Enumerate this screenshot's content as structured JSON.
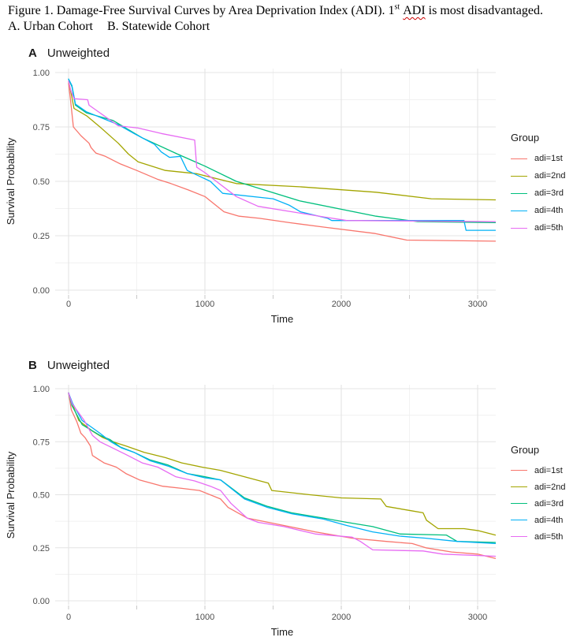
{
  "figure_title": {
    "prefix": "Figure 1. Damage-Free Survival Curves by Area Deprivation Index (ADI). 1",
    "superscript": "st",
    "misspelled_word": "ADI",
    "suffix": " is most disadvantaged.",
    "line2_a": "A. Urban Cohort",
    "line2_b": "B. Statewide Cohort"
  },
  "colors": {
    "grid_major": "#e4e4e4",
    "grid_minor": "#f1f1f1",
    "tick": "#c9c9c9",
    "axis_text": "#4d4d4d",
    "axis_title": "#1a1a1a"
  },
  "chart_data": [
    {
      "type": "line",
      "panel_label": "A",
      "title": "Unweighted",
      "xlabel": "Time",
      "ylabel": "Survival Probability",
      "x_ticks": [
        0,
        1000,
        2000,
        3000
      ],
      "x_tick_labels": [
        "0",
        "1000",
        "2000",
        "3000"
      ],
      "x_minor_ticks": [
        500,
        1500,
        2500
      ],
      "y_ticks": [
        0,
        0.25,
        0.5,
        0.75,
        1
      ],
      "y_tick_labels": [
        "0.00",
        "0.25",
        "0.50",
        "0.75",
        "1.00"
      ],
      "y_minor_ticks": [
        0.125,
        0.375,
        0.625,
        0.875
      ],
      "xlim": [
        0,
        3130
      ],
      "ylim": [
        0,
        1
      ],
      "grid": true,
      "legend_title": "Group",
      "legend_position": "right",
      "series": [
        {
          "name": "adi=1st",
          "color": "#F8766D",
          "points": [
            [
              0,
              0.95
            ],
            [
              15,
              0.87
            ],
            [
              35,
              0.75
            ],
            [
              90,
              0.71
            ],
            [
              150,
              0.675
            ],
            [
              165,
              0.655
            ],
            [
              200,
              0.63
            ],
            [
              270,
              0.615
            ],
            [
              380,
              0.58
            ],
            [
              500,
              0.55
            ],
            [
              650,
              0.51
            ],
            [
              750,
              0.49
            ],
            [
              880,
              0.46
            ],
            [
              1000,
              0.43
            ],
            [
              1100,
              0.38
            ],
            [
              1140,
              0.36
            ],
            [
              1250,
              0.34
            ],
            [
              1400,
              0.33
            ],
            [
              1620,
              0.31
            ],
            [
              1870,
              0.29
            ],
            [
              2250,
              0.26
            ],
            [
              2480,
              0.23
            ],
            [
              3130,
              0.225
            ]
          ]
        },
        {
          "name": "adi=2nd",
          "color": "#A3A500",
          "points": [
            [
              0,
              0.96
            ],
            [
              20,
              0.9
            ],
            [
              40,
              0.835
            ],
            [
              135,
              0.8
            ],
            [
              230,
              0.75
            ],
            [
              365,
              0.675
            ],
            [
              440,
              0.625
            ],
            [
              510,
              0.59
            ],
            [
              710,
              0.55
            ],
            [
              940,
              0.535
            ],
            [
              1230,
              0.49
            ],
            [
              1695,
              0.475
            ],
            [
              2255,
              0.45
            ],
            [
              2660,
              0.42
            ],
            [
              3130,
              0.415
            ]
          ]
        },
        {
          "name": "adi=3rd",
          "color": "#00BF7D",
          "points": [
            [
              0,
              0.97
            ],
            [
              25,
              0.935
            ],
            [
              50,
              0.85
            ],
            [
              130,
              0.815
            ],
            [
              325,
              0.78
            ],
            [
              540,
              0.7
            ],
            [
              800,
              0.625
            ],
            [
              1000,
              0.57
            ],
            [
              1230,
              0.5
            ],
            [
              1695,
              0.41
            ],
            [
              2255,
              0.34
            ],
            [
              2560,
              0.315
            ],
            [
              3130,
              0.31
            ]
          ]
        },
        {
          "name": "adi=4th",
          "color": "#00B0F6",
          "points": [
            [
              0,
              0.97
            ],
            [
              25,
              0.94
            ],
            [
              50,
              0.855
            ],
            [
              130,
              0.82
            ],
            [
              365,
              0.76
            ],
            [
              480,
              0.72
            ],
            [
              630,
              0.67
            ],
            [
              680,
              0.635
            ],
            [
              740,
              0.61
            ],
            [
              820,
              0.615
            ],
            [
              870,
              0.55
            ],
            [
              1040,
              0.5
            ],
            [
              1130,
              0.445
            ],
            [
              1500,
              0.42
            ],
            [
              1620,
              0.39
            ],
            [
              1700,
              0.36
            ],
            [
              1900,
              0.33
            ],
            [
              1930,
              0.32
            ],
            [
              2900,
              0.32
            ],
            [
              2915,
              0.275
            ],
            [
              3130,
              0.275
            ]
          ]
        },
        {
          "name": "adi=5th",
          "color": "#E76BF3",
          "points": [
            [
              0,
              0.96
            ],
            [
              15,
              0.92
            ],
            [
              40,
              0.88
            ],
            [
              140,
              0.875
            ],
            [
              150,
              0.85
            ],
            [
              365,
              0.755
            ],
            [
              510,
              0.745
            ],
            [
              680,
              0.72
            ],
            [
              925,
              0.69
            ],
            [
              940,
              0.565
            ],
            [
              1000,
              0.54
            ],
            [
              1230,
              0.43
            ],
            [
              1390,
              0.385
            ],
            [
              1885,
              0.335
            ],
            [
              2040,
              0.32
            ],
            [
              3130,
              0.315
            ]
          ]
        }
      ]
    },
    {
      "type": "line",
      "panel_label": "B",
      "title": "Unweighted",
      "xlabel": "Time",
      "ylabel": "Survival Probability",
      "x_ticks": [
        0,
        1000,
        2000,
        3000
      ],
      "x_tick_labels": [
        "0",
        "1000",
        "2000",
        "3000"
      ],
      "x_minor_ticks": [
        500,
        1500,
        2500
      ],
      "y_ticks": [
        0,
        0.25,
        0.5,
        0.75,
        1
      ],
      "y_tick_labels": [
        "0.00",
        "0.25",
        "0.50",
        "0.75",
        "1.00"
      ],
      "y_minor_ticks": [
        0.125,
        0.375,
        0.625,
        0.875
      ],
      "xlim": [
        0,
        3130
      ],
      "ylim": [
        0,
        1
      ],
      "grid": true,
      "legend_title": "Group",
      "legend_position": "right",
      "series": [
        {
          "name": "adi=1st",
          "color": "#F8766D",
          "points": [
            [
              0,
              0.98
            ],
            [
              20,
              0.9
            ],
            [
              60,
              0.845
            ],
            [
              90,
              0.79
            ],
            [
              120,
              0.77
            ],
            [
              160,
              0.73
            ],
            [
              175,
              0.685
            ],
            [
              260,
              0.65
            ],
            [
              350,
              0.63
            ],
            [
              420,
              0.6
            ],
            [
              520,
              0.57
            ],
            [
              690,
              0.54
            ],
            [
              830,
              0.53
            ],
            [
              960,
              0.52
            ],
            [
              1115,
              0.48
            ],
            [
              1170,
              0.44
            ],
            [
              1310,
              0.39
            ],
            [
              1580,
              0.355
            ],
            [
              1810,
              0.325
            ],
            [
              2080,
              0.295
            ],
            [
              2330,
              0.28
            ],
            [
              2520,
              0.27
            ],
            [
              2620,
              0.25
            ],
            [
              2810,
              0.23
            ],
            [
              3000,
              0.22
            ],
            [
              3130,
              0.2
            ]
          ]
        },
        {
          "name": "adi=2nd",
          "color": "#A3A500",
          "points": [
            [
              0,
              0.98
            ],
            [
              20,
              0.94
            ],
            [
              75,
              0.85
            ],
            [
              175,
              0.8
            ],
            [
              250,
              0.77
            ],
            [
              325,
              0.75
            ],
            [
              420,
              0.73
            ],
            [
              555,
              0.7
            ],
            [
              710,
              0.675
            ],
            [
              830,
              0.65
            ],
            [
              980,
              0.63
            ],
            [
              1115,
              0.615
            ],
            [
              1465,
              0.555
            ],
            [
              1490,
              0.52
            ],
            [
              1770,
              0.5
            ],
            [
              2000,
              0.485
            ],
            [
              2290,
              0.48
            ],
            [
              2330,
              0.445
            ],
            [
              2510,
              0.425
            ],
            [
              2600,
              0.415
            ],
            [
              2625,
              0.38
            ],
            [
              2710,
              0.34
            ],
            [
              2900,
              0.34
            ],
            [
              3010,
              0.33
            ],
            [
              3130,
              0.31
            ]
          ]
        },
        {
          "name": "adi=3rd",
          "color": "#00BF7D",
          "points": [
            [
              0,
              0.98
            ],
            [
              25,
              0.92
            ],
            [
              100,
              0.83
            ],
            [
              230,
              0.78
            ],
            [
              305,
              0.76
            ],
            [
              380,
              0.725
            ],
            [
              480,
              0.7
            ],
            [
              595,
              0.665
            ],
            [
              730,
              0.64
            ],
            [
              870,
              0.6
            ],
            [
              1000,
              0.585
            ],
            [
              1115,
              0.57
            ],
            [
              1290,
              0.485
            ],
            [
              1460,
              0.445
            ],
            [
              1635,
              0.415
            ],
            [
              1870,
              0.39
            ],
            [
              2040,
              0.37
            ],
            [
              2230,
              0.35
            ],
            [
              2430,
              0.315
            ],
            [
              2770,
              0.31
            ],
            [
              2850,
              0.28
            ],
            [
              3130,
              0.275
            ]
          ]
        },
        {
          "name": "adi=4th",
          "color": "#00B0F6",
          "points": [
            [
              0,
              0.98
            ],
            [
              30,
              0.93
            ],
            [
              100,
              0.85
            ],
            [
              230,
              0.79
            ],
            [
              310,
              0.75
            ],
            [
              390,
              0.72
            ],
            [
              480,
              0.7
            ],
            [
              600,
              0.66
            ],
            [
              730,
              0.635
            ],
            [
              870,
              0.6
            ],
            [
              1000,
              0.58
            ],
            [
              1115,
              0.57
            ],
            [
              1290,
              0.48
            ],
            [
              1460,
              0.44
            ],
            [
              1640,
              0.41
            ],
            [
              1870,
              0.385
            ],
            [
              2040,
              0.355
            ],
            [
              2230,
              0.325
            ],
            [
              2430,
              0.305
            ],
            [
              2620,
              0.295
            ],
            [
              2850,
              0.28
            ],
            [
              3130,
              0.27
            ]
          ]
        },
        {
          "name": "adi=5th",
          "color": "#E76BF3",
          "points": [
            [
              0,
              0.98
            ],
            [
              25,
              0.93
            ],
            [
              115,
              0.85
            ],
            [
              175,
              0.78
            ],
            [
              230,
              0.75
            ],
            [
              325,
              0.72
            ],
            [
              420,
              0.69
            ],
            [
              540,
              0.65
            ],
            [
              655,
              0.63
            ],
            [
              785,
              0.585
            ],
            [
              925,
              0.565
            ],
            [
              1040,
              0.54
            ],
            [
              1115,
              0.52
            ],
            [
              1190,
              0.46
            ],
            [
              1310,
              0.39
            ],
            [
              1390,
              0.37
            ],
            [
              1580,
              0.35
            ],
            [
              1810,
              0.315
            ],
            [
              2080,
              0.3
            ],
            [
              2140,
              0.28
            ],
            [
              2230,
              0.24
            ],
            [
              2600,
              0.235
            ],
            [
              2745,
              0.22
            ],
            [
              3130,
              0.21
            ]
          ]
        }
      ]
    }
  ]
}
